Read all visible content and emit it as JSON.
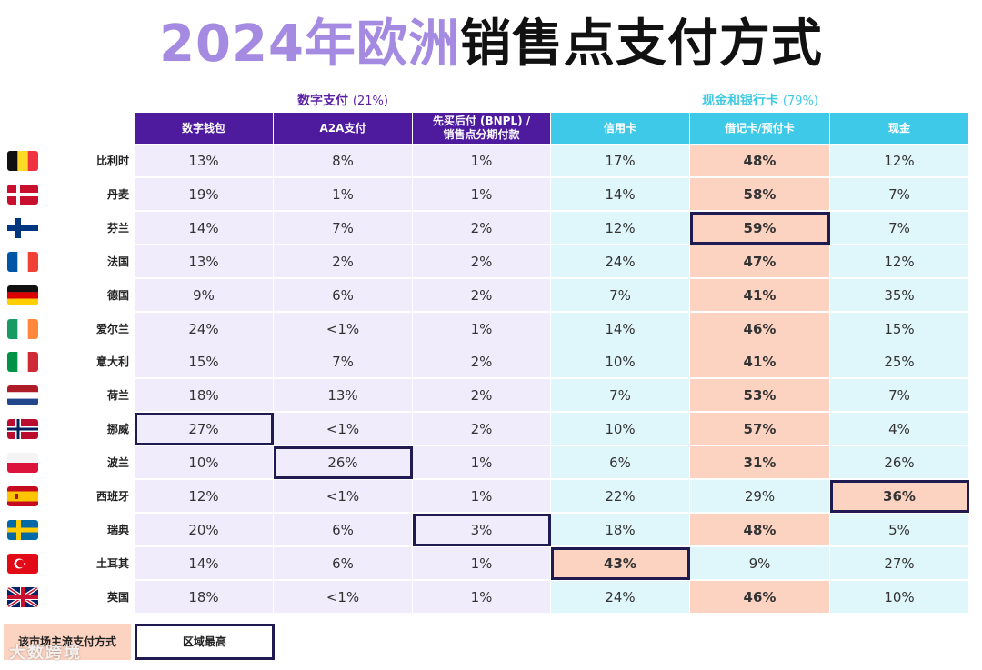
{
  "title": {
    "part1": "2024年欧洲",
    "part2": "销售点支付方式"
  },
  "chart_data": {
    "type": "table",
    "title": "2024年欧洲销售点支付方式",
    "groups": [
      {
        "label": "数字支付",
        "share": "(21%)",
        "columns": [
          "数字钱包",
          "A2A支付",
          "先买后付 (BNPL) / 销售点分期付款"
        ]
      },
      {
        "label": "现金和银行卡",
        "share": "(79%)",
        "columns": [
          "信用卡",
          "借记卡/预付卡",
          "现金"
        ]
      }
    ],
    "columns": [
      "数字钱包",
      "A2A支付",
      "先买后付 (BNPL) /",
      "销售点分期付款",
      "信用卡",
      "借记卡/预付卡",
      "现金"
    ],
    "rows": [
      {
        "country": "比利时",
        "flag": "belgium",
        "values": [
          "13%",
          "8%",
          "1%",
          "17%",
          "48%",
          "12%"
        ],
        "dominant": 4,
        "highest": -1
      },
      {
        "country": "丹麦",
        "flag": "denmark",
        "values": [
          "19%",
          "1%",
          "1%",
          "14%",
          "58%",
          "7%"
        ],
        "dominant": 4,
        "highest": -1
      },
      {
        "country": "芬兰",
        "flag": "finland",
        "values": [
          "14%",
          "7%",
          "2%",
          "12%",
          "59%",
          "7%"
        ],
        "dominant": 4,
        "highest": 4
      },
      {
        "country": "法国",
        "flag": "france",
        "values": [
          "13%",
          "2%",
          "2%",
          "24%",
          "47%",
          "12%"
        ],
        "dominant": 4,
        "highest": -1
      },
      {
        "country": "德国",
        "flag": "germany",
        "values": [
          "9%",
          "6%",
          "2%",
          "7%",
          "41%",
          "35%"
        ],
        "dominant": 4,
        "highest": -1
      },
      {
        "country": "爱尔兰",
        "flag": "ireland",
        "values": [
          "24%",
          "<1%",
          "1%",
          "14%",
          "46%",
          "15%"
        ],
        "dominant": 4,
        "highest": -1
      },
      {
        "country": "意大利",
        "flag": "italy",
        "values": [
          "15%",
          "7%",
          "2%",
          "10%",
          "41%",
          "25%"
        ],
        "dominant": 4,
        "highest": -1
      },
      {
        "country": "荷兰",
        "flag": "netherlands",
        "values": [
          "18%",
          "13%",
          "2%",
          "7%",
          "53%",
          "7%"
        ],
        "dominant": 4,
        "highest": -1
      },
      {
        "country": "挪威",
        "flag": "norway",
        "values": [
          "27%",
          "<1%",
          "2%",
          "10%",
          "57%",
          "4%"
        ],
        "dominant": 4,
        "highest": 0
      },
      {
        "country": "波兰",
        "flag": "poland",
        "values": [
          "10%",
          "26%",
          "1%",
          "6%",
          "31%",
          "26%"
        ],
        "dominant": 4,
        "highest": 1
      },
      {
        "country": "西班牙",
        "flag": "spain",
        "values": [
          "12%",
          "<1%",
          "1%",
          "22%",
          "29%",
          "36%"
        ],
        "dominant": 5,
        "highest": 5
      },
      {
        "country": "瑞典",
        "flag": "sweden",
        "values": [
          "20%",
          "6%",
          "3%",
          "18%",
          "48%",
          "5%"
        ],
        "dominant": 4,
        "highest": 2
      },
      {
        "country": "土耳其",
        "flag": "turkey",
        "values": [
          "14%",
          "6%",
          "1%",
          "43%",
          "9%",
          "27%"
        ],
        "dominant": 3,
        "highest": 3
      },
      {
        "country": "英国",
        "flag": "uk",
        "values": [
          "18%",
          "<1%",
          "1%",
          "24%",
          "46%",
          "10%"
        ],
        "dominant": 4,
        "highest": -1
      }
    ],
    "legend": {
      "dominant": "该市场主流支付方式",
      "highest": "区域最高"
    }
  },
  "colors": {
    "digital_header": "#4e1a9e",
    "cash_header": "#3fc9e8",
    "digital_cell": "#f1ecfc",
    "cash_cell": "#dff6fb",
    "dominant": "#fcd3c1",
    "highest_border": "#1f1a4f"
  },
  "watermark": "大数跨境"
}
